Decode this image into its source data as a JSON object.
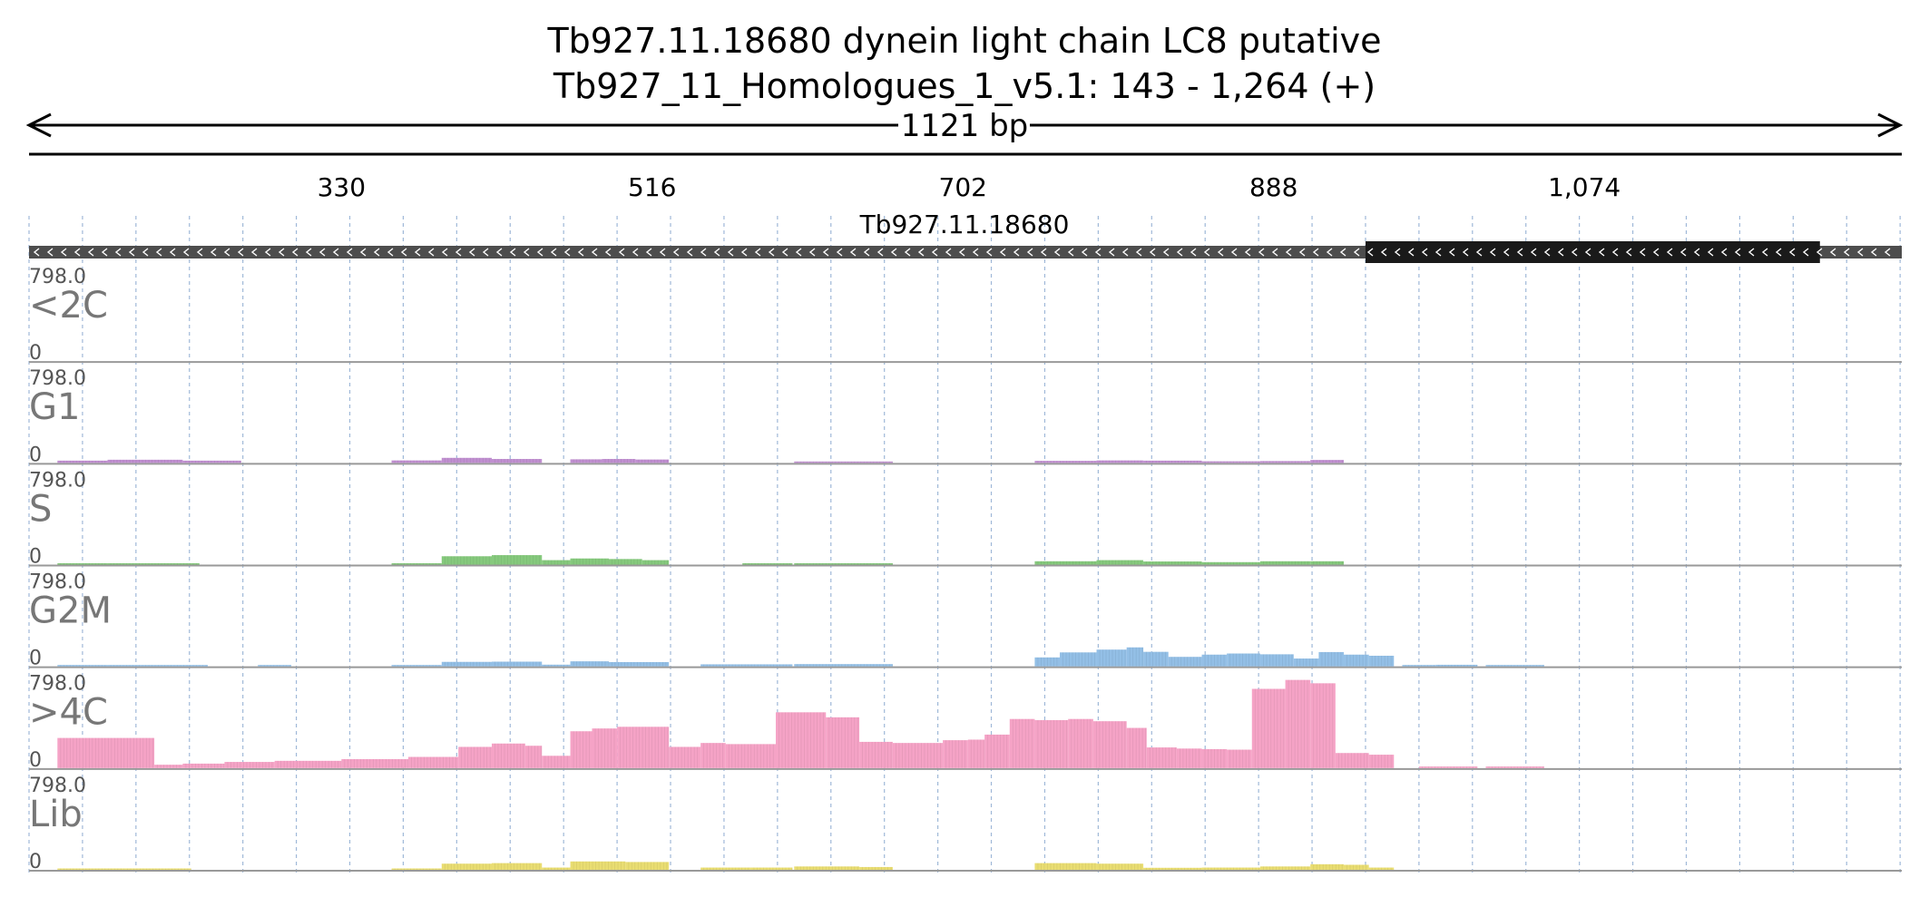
{
  "header": {
    "title": "Tb927.11.18680  dynein light chain LC8  putative",
    "subtitle": "Tb927_11_Homologues_1_v5.1: 143 - 1,264 (+)",
    "span_label": "1121 bp"
  },
  "colors": {
    "axis": "#000000",
    "gridline": "#9fb8d8",
    "gene_backbone": "#4d4d4d",
    "gene_block": "#1a1a1a",
    "track_baseline": "#999999"
  },
  "chart_data": {
    "type": "bar",
    "x_range": [
      143,
      1264
    ],
    "x_ticks": [
      330,
      516,
      702,
      888,
      1074
    ],
    "x_tick_labels": [
      "330",
      "516",
      "702",
      "888",
      "1,074"
    ],
    "grid_positions": [
      143,
      175,
      207,
      239,
      271,
      303,
      335,
      367,
      399,
      431,
      463,
      495,
      527,
      559,
      591,
      623,
      655,
      687,
      719,
      751,
      783,
      815,
      847,
      879,
      911,
      943,
      975,
      1007,
      1039,
      1071,
      1103,
      1135,
      1167,
      1199,
      1231,
      1263
    ],
    "gene": {
      "name": "Tb927.11.18680",
      "strand": "-",
      "span": [
        143,
        1264
      ],
      "block": [
        943,
        1215
      ]
    },
    "tracks": [
      {
        "name": "<2C",
        "ymax_label": "798.0",
        "ymin_label": "0",
        "ymax": 798,
        "color": "#c08fd0",
        "bins": []
      },
      {
        "name": "G1",
        "ymax_label": "798.0",
        "ymin_label": "0",
        "ymax": 798,
        "color": "#c08fd0",
        "bins": [
          [
            160,
            190,
            20
          ],
          [
            190,
            235,
            28
          ],
          [
            235,
            270,
            20
          ],
          [
            270,
            270,
            0
          ],
          [
            270,
            270,
            0
          ],
          [
            360,
            390,
            22
          ],
          [
            390,
            420,
            45
          ],
          [
            420,
            450,
            35
          ],
          [
            450,
            455,
            0
          ],
          [
            467,
            486,
            32
          ],
          [
            486,
            506,
            35
          ],
          [
            506,
            526,
            30
          ],
          [
            601,
            660,
            10
          ],
          [
            745,
            782,
            18
          ],
          [
            782,
            810,
            22
          ],
          [
            810,
            845,
            20
          ],
          [
            845,
            880,
            14
          ],
          [
            880,
            910,
            16
          ],
          [
            910,
            930,
            26
          ],
          [
            930,
            930,
            0
          ]
        ]
      },
      {
        "name": "S",
        "ymax_label": "798.0",
        "ymin_label": "0",
        "ymax": 798,
        "color": "#86c97d",
        "bins": [
          [
            160,
            190,
            8
          ],
          [
            190,
            245,
            10
          ],
          [
            360,
            390,
            10
          ],
          [
            390,
            420,
            75
          ],
          [
            420,
            450,
            85
          ],
          [
            450,
            467,
            40
          ],
          [
            467,
            490,
            55
          ],
          [
            490,
            510,
            50
          ],
          [
            510,
            526,
            40
          ],
          [
            570,
            600,
            10
          ],
          [
            601,
            660,
            10
          ],
          [
            745,
            782,
            30
          ],
          [
            782,
            810,
            40
          ],
          [
            810,
            845,
            28
          ],
          [
            845,
            880,
            22
          ],
          [
            880,
            910,
            30
          ],
          [
            910,
            930,
            30
          ]
        ]
      },
      {
        "name": "G2M",
        "ymax_label": "798.0",
        "ymin_label": "0",
        "ymax": 798,
        "color": "#93bfe6",
        "bins": [
          [
            160,
            190,
            6
          ],
          [
            190,
            250,
            8
          ],
          [
            280,
            300,
            6
          ],
          [
            360,
            390,
            8
          ],
          [
            390,
            420,
            40
          ],
          [
            420,
            450,
            42
          ],
          [
            450,
            467,
            15
          ],
          [
            467,
            490,
            45
          ],
          [
            490,
            526,
            38
          ],
          [
            545,
            600,
            18
          ],
          [
            601,
            660,
            20
          ],
          [
            745,
            760,
            80
          ],
          [
            760,
            782,
            125
          ],
          [
            782,
            800,
            150
          ],
          [
            800,
            810,
            170
          ],
          [
            810,
            825,
            130
          ],
          [
            825,
            845,
            85
          ],
          [
            845,
            860,
            105
          ],
          [
            860,
            880,
            115
          ],
          [
            880,
            900,
            108
          ],
          [
            900,
            915,
            70
          ],
          [
            915,
            930,
            128
          ],
          [
            930,
            945,
            105
          ],
          [
            945,
            960,
            95
          ],
          [
            965,
            985,
            12
          ],
          [
            985,
            1010,
            14
          ],
          [
            1015,
            1050,
            10
          ]
        ]
      },
      {
        "name": ">4C",
        "ymax_label": "798.0",
        "ymin_label": "0",
        "ymax": 798,
        "color": "#f5a3c6",
        "bins": [
          [
            160,
            218,
            270
          ],
          [
            218,
            235,
            30
          ],
          [
            235,
            260,
            40
          ],
          [
            260,
            290,
            55
          ],
          [
            290,
            330,
            65
          ],
          [
            330,
            370,
            80
          ],
          [
            370,
            400,
            100
          ],
          [
            400,
            420,
            190
          ],
          [
            420,
            440,
            220
          ],
          [
            440,
            450,
            200
          ],
          [
            450,
            467,
            110
          ],
          [
            467,
            480,
            330
          ],
          [
            480,
            495,
            355
          ],
          [
            495,
            526,
            370
          ],
          [
            526,
            545,
            190
          ],
          [
            545,
            560,
            225
          ],
          [
            560,
            590,
            215
          ],
          [
            590,
            620,
            500
          ],
          [
            620,
            640,
            455
          ],
          [
            640,
            660,
            235
          ],
          [
            660,
            690,
            225
          ],
          [
            690,
            705,
            250
          ],
          [
            705,
            715,
            255
          ],
          [
            715,
            730,
            300
          ],
          [
            730,
            745,
            440
          ],
          [
            745,
            765,
            430
          ],
          [
            765,
            780,
            440
          ],
          [
            780,
            800,
            420
          ],
          [
            800,
            812,
            360
          ],
          [
            812,
            830,
            185
          ],
          [
            830,
            845,
            175
          ],
          [
            845,
            860,
            170
          ],
          [
            860,
            875,
            165
          ],
          [
            875,
            895,
            710
          ],
          [
            895,
            910,
            790
          ],
          [
            910,
            925,
            760
          ],
          [
            925,
            945,
            135
          ],
          [
            945,
            960,
            120
          ],
          [
            975,
            1010,
            14
          ],
          [
            1015,
            1050,
            14
          ]
        ]
      },
      {
        "name": "Lib",
        "ymax_label": "798.0",
        "ymin_label": "0",
        "ymax": 798,
        "color": "#e9dd72",
        "bins": [
          [
            160,
            200,
            8
          ],
          [
            200,
            240,
            8
          ],
          [
            360,
            390,
            8
          ],
          [
            390,
            420,
            55
          ],
          [
            420,
            450,
            60
          ],
          [
            450,
            467,
            20
          ],
          [
            467,
            500,
            75
          ],
          [
            500,
            526,
            70
          ],
          [
            545,
            575,
            20
          ],
          [
            575,
            600,
            20
          ],
          [
            601,
            640,
            30
          ],
          [
            640,
            660,
            25
          ],
          [
            745,
            782,
            60
          ],
          [
            782,
            810,
            55
          ],
          [
            810,
            845,
            18
          ],
          [
            845,
            880,
            20
          ],
          [
            880,
            910,
            30
          ],
          [
            910,
            930,
            50
          ],
          [
            930,
            945,
            45
          ],
          [
            945,
            960,
            20
          ]
        ]
      }
    ]
  }
}
